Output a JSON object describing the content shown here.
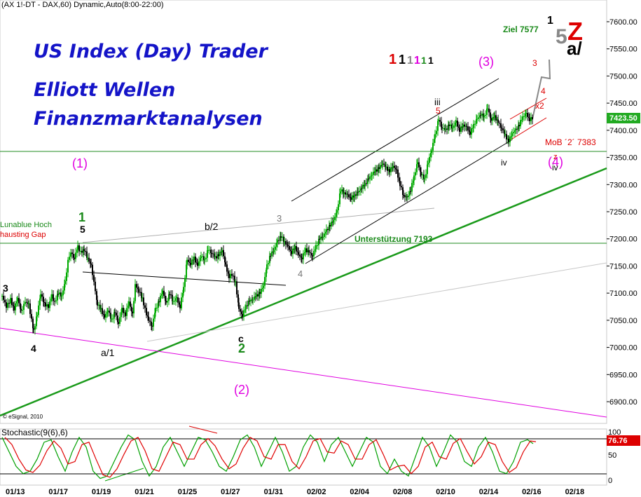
{
  "header": {
    "symbol_line": "(AX 1!-DT - DAX,60) Dynamic,Auto(8:00-22:00)",
    "copyright": "© eSignal, 2010"
  },
  "titles": {
    "line1": "US Index (Day) Trader",
    "line2": "Elliott Wellen",
    "line3": "Finanzmarktanalysen"
  },
  "colors": {
    "title_blue": "#1414c8",
    "bull_candle": "#00aa00",
    "bear_candle": "#000000",
    "support_line": "#228b22",
    "trend_green": "#1a9a1a",
    "magenta_line": "#e000e0",
    "channel_black": "#000000",
    "stoch_k": "#00a000",
    "stoch_d": "#e00000",
    "price_box": "#22aa22",
    "stoch_box": "#dd0000"
  },
  "chart_data": {
    "type": "candlestick",
    "title": "(AX 1!-DT - DAX,60) Dynamic,Auto(8:00-22:00)",
    "y_axis": {
      "range": [
        6860,
        7640
      ],
      "ticks": [
        7600,
        7550,
        7500,
        7450,
        7400,
        7350,
        7300,
        7250,
        7200,
        7150,
        7100,
        7050,
        7000,
        6950,
        6900
      ],
      "tick_labels": [
        "7600.00",
        "7550.00",
        "7500.00",
        "7450.00",
        "7400.00",
        "7350.00",
        "7300.00",
        "7250.00",
        "7200.00",
        "7150.00",
        "7100.00",
        "7050.00",
        "7000.00",
        "6950.00",
        "6900.00"
      ]
    },
    "x_axis": {
      "tick_labels": [
        "01/13",
        "01/17",
        "01/19",
        "01/21",
        "01/25",
        "01/27",
        "01/31",
        "02/02",
        "02/04",
        "02/08",
        "02/10",
        "02/14",
        "02/16",
        "02/18"
      ]
    },
    "last_price": "7423.50",
    "price_path": [
      [
        0,
        7095
      ],
      [
        6,
        7075
      ],
      [
        12,
        7088
      ],
      [
        17,
        7070
      ],
      [
        22,
        7092
      ],
      [
        27,
        7065
      ],
      [
        33,
        7085
      ],
      [
        38,
        7078
      ],
      [
        45,
        7030
      ],
      [
        50,
        7060
      ],
      [
        55,
        7100
      ],
      [
        60,
        7080
      ],
      [
        66,
        7075
      ],
      [
        71,
        7095
      ],
      [
        75,
        7082
      ],
      [
        80,
        7100
      ],
      [
        85,
        7096
      ],
      [
        90,
        7120
      ],
      [
        94,
        7160
      ],
      [
        98,
        7175
      ],
      [
        103,
        7165
      ],
      [
        108,
        7185
      ],
      [
        112,
        7175
      ],
      [
        117,
        7180
      ],
      [
        122,
        7165
      ],
      [
        127,
        7150
      ],
      [
        131,
        7120
      ],
      [
        136,
        7080
      ],
      [
        141,
        7070
      ],
      [
        146,
        7055
      ],
      [
        151,
        7070
      ],
      [
        156,
        7050
      ],
      [
        161,
        7065
      ],
      [
        166,
        7045
      ],
      [
        171,
        7070
      ],
      [
        176,
        7060
      ],
      [
        181,
        7085
      ],
      [
        186,
        7060
      ],
      [
        190,
        7115
      ],
      [
        195,
        7105
      ],
      [
        200,
        7090
      ],
      [
        204,
        7070
      ],
      [
        209,
        7050
      ],
      [
        214,
        7040
      ],
      [
        219,
        7070
      ],
      [
        224,
        7085
      ],
      [
        229,
        7105
      ],
      [
        234,
        7080
      ],
      [
        239,
        7100
      ],
      [
        244,
        7085
      ],
      [
        249,
        7090
      ],
      [
        254,
        7075
      ],
      [
        259,
        7110
      ],
      [
        264,
        7160
      ],
      [
        269,
        7155
      ],
      [
        274,
        7165
      ],
      [
        279,
        7150
      ],
      [
        284,
        7170
      ],
      [
        289,
        7160
      ],
      [
        294,
        7180
      ],
      [
        299,
        7175
      ],
      [
        304,
        7165
      ],
      [
        309,
        7170
      ],
      [
        314,
        7180
      ],
      [
        319,
        7150
      ],
      [
        324,
        7130
      ],
      [
        328,
        7135
      ],
      [
        333,
        7120
      ],
      [
        338,
        7070
      ],
      [
        343,
        7060
      ],
      [
        348,
        7075
      ],
      [
        353,
        7085
      ],
      [
        358,
        7090
      ],
      [
        363,
        7095
      ],
      [
        368,
        7100
      ],
      [
        373,
        7115
      ],
      [
        378,
        7150
      ],
      [
        383,
        7170
      ],
      [
        388,
        7180
      ],
      [
        393,
        7195
      ],
      [
        398,
        7205
      ],
      [
        403,
        7195
      ],
      [
        408,
        7185
      ],
      [
        413,
        7175
      ],
      [
        418,
        7185
      ],
      [
        423,
        7170
      ],
      [
        428,
        7165
      ],
      [
        433,
        7180
      ],
      [
        438,
        7175
      ],
      [
        443,
        7170
      ],
      [
        448,
        7185
      ],
      [
        453,
        7200
      ],
      [
        458,
        7205
      ],
      [
        463,
        7215
      ],
      [
        468,
        7225
      ],
      [
        473,
        7235
      ],
      [
        478,
        7250
      ],
      [
        483,
        7290
      ],
      [
        488,
        7285
      ],
      [
        493,
        7280
      ],
      [
        498,
        7275
      ],
      [
        503,
        7280
      ],
      [
        508,
        7285
      ],
      [
        513,
        7295
      ],
      [
        518,
        7300
      ],
      [
        523,
        7310
      ],
      [
        528,
        7320
      ],
      [
        533,
        7325
      ],
      [
        538,
        7330
      ],
      [
        543,
        7340
      ],
      [
        548,
        7330
      ],
      [
        553,
        7325
      ],
      [
        558,
        7335
      ],
      [
        563,
        7325
      ],
      [
        568,
        7300
      ],
      [
        573,
        7280
      ],
      [
        578,
        7275
      ],
      [
        583,
        7290
      ],
      [
        588,
        7315
      ],
      [
        593,
        7340
      ],
      [
        598,
        7320
      ],
      [
        603,
        7310
      ],
      [
        608,
        7340
      ],
      [
        613,
        7365
      ],
      [
        618,
        7390
      ],
      [
        623,
        7420
      ],
      [
        628,
        7405
      ],
      [
        633,
        7400
      ],
      [
        638,
        7410
      ],
      [
        643,
        7405
      ],
      [
        648,
        7415
      ],
      [
        653,
        7400
      ],
      [
        658,
        7410
      ],
      [
        663,
        7405
      ],
      [
        668,
        7395
      ],
      [
        673,
        7410
      ],
      [
        678,
        7420
      ],
      [
        683,
        7430
      ],
      [
        688,
        7425
      ],
      [
        693,
        7440
      ],
      [
        698,
        7420
      ],
      [
        703,
        7425
      ],
      [
        708,
        7415
      ],
      [
        713,
        7405
      ],
      [
        718,
        7390
      ],
      [
        723,
        7380
      ],
      [
        728,
        7395
      ],
      [
        733,
        7400
      ],
      [
        738,
        7410
      ],
      [
        743,
        7425
      ],
      [
        748,
        7430
      ],
      [
        753,
        7420
      ],
      [
        758,
        7423.5
      ]
    ],
    "annotations": [
      {
        "text": "(1)",
        "color": "#e000e0"
      },
      {
        "text": "(2)",
        "color": "#e000e0"
      },
      {
        "text": "(3)",
        "color": "#e000e0"
      },
      {
        "text": "(4)",
        "color": "#e000e0"
      },
      {
        "text": "Ziel 7577",
        "color": "#1a8a1a"
      },
      {
        "text": "MoB ´2´ 7383",
        "color": "#dd0000"
      },
      {
        "text": "Unterstützung 7193",
        "color": "#1a8a1a"
      },
      {
        "text": "Lunablue Hoch",
        "color": "#1a8a1a"
      },
      {
        "text": "hausting Gap",
        "color": "#dd0000"
      },
      {
        "text": "b/2",
        "color": "#000000"
      },
      {
        "text": "a/1",
        "color": "#000000"
      },
      {
        "text": "a/",
        "color": "#000000"
      },
      {
        "text": "Z",
        "color": "#dd0000"
      },
      {
        "text": "5",
        "color": "#888888"
      }
    ]
  },
  "stochastic": {
    "label": "Stochastic(9(6),6)",
    "value": "76.76",
    "y_ticks": [
      "100",
      "50",
      "0"
    ],
    "k_path": [
      [
        0,
        90
      ],
      [
        10,
        60
      ],
      [
        20,
        30
      ],
      [
        30,
        15
      ],
      [
        40,
        20
      ],
      [
        50,
        45
      ],
      [
        60,
        80
      ],
      [
        70,
        85
      ],
      [
        80,
        50
      ],
      [
        90,
        20
      ],
      [
        100,
        60
      ],
      [
        110,
        90
      ],
      [
        120,
        70
      ],
      [
        130,
        20
      ],
      [
        140,
        5
      ],
      [
        150,
        10
      ],
      [
        160,
        40
      ],
      [
        170,
        70
      ],
      [
        180,
        95
      ],
      [
        190,
        85
      ],
      [
        200,
        40
      ],
      [
        210,
        10
      ],
      [
        220,
        30
      ],
      [
        230,
        70
      ],
      [
        240,
        90
      ],
      [
        250,
        60
      ],
      [
        260,
        30
      ],
      [
        270,
        60
      ],
      [
        280,
        90
      ],
      [
        290,
        85
      ],
      [
        300,
        60
      ],
      [
        310,
        30
      ],
      [
        320,
        20
      ],
      [
        330,
        50
      ],
      [
        340,
        85
      ],
      [
        350,
        95
      ],
      [
        360,
        70
      ],
      [
        370,
        30
      ],
      [
        380,
        60
      ],
      [
        390,
        90
      ],
      [
        400,
        60
      ],
      [
        410,
        20
      ],
      [
        420,
        30
      ],
      [
        430,
        70
      ],
      [
        440,
        95
      ],
      [
        450,
        80
      ],
      [
        460,
        40
      ],
      [
        470,
        75
      ],
      [
        480,
        90
      ],
      [
        490,
        60
      ],
      [
        500,
        30
      ],
      [
        510,
        60
      ],
      [
        520,
        90
      ],
      [
        530,
        80
      ],
      [
        540,
        30
      ],
      [
        550,
        15
      ],
      [
        560,
        45
      ],
      [
        570,
        20
      ],
      [
        580,
        10
      ],
      [
        590,
        50
      ],
      [
        600,
        90
      ],
      [
        610,
        70
      ],
      [
        620,
        30
      ],
      [
        630,
        60
      ],
      [
        640,
        95
      ],
      [
        650,
        80
      ],
      [
        660,
        40
      ],
      [
        670,
        30
      ],
      [
        680,
        70
      ],
      [
        690,
        90
      ],
      [
        700,
        60
      ],
      [
        710,
        20
      ],
      [
        720,
        15
      ],
      [
        730,
        40
      ],
      [
        740,
        80
      ],
      [
        750,
        85
      ],
      [
        758,
        77
      ]
    ]
  }
}
